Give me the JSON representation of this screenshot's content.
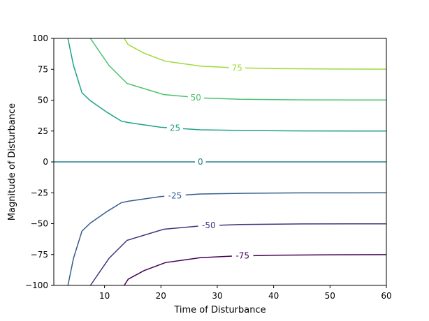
{
  "chart_data": {
    "type": "contour",
    "xlabel": "Time of Disturbance",
    "ylabel": "Magnitude of Disturbance",
    "xlim": [
      1,
      60
    ],
    "ylim": [
      -100,
      100
    ],
    "xticks": [
      10,
      20,
      30,
      40,
      50,
      60
    ],
    "yticks": [
      -100,
      -75,
      -50,
      -25,
      0,
      25,
      50,
      75,
      100
    ],
    "grid": false,
    "contours": [
      {
        "level": 75,
        "label": "75",
        "color": "#a0da39",
        "points": [
          [
            13.5,
            100
          ],
          [
            14.2,
            95
          ],
          [
            17,
            88
          ],
          [
            20.8,
            81.5
          ],
          [
            27,
            77.5
          ],
          [
            33,
            76.2
          ],
          [
            40,
            75.6
          ],
          [
            50,
            75.2
          ],
          [
            60,
            75.1
          ]
        ]
      },
      {
        "level": 50,
        "label": "50",
        "color": "#4ac16d",
        "points": [
          [
            7.5,
            100
          ],
          [
            10.8,
            78
          ],
          [
            14,
            63.5
          ],
          [
            20.5,
            54.5
          ],
          [
            27,
            51.8
          ],
          [
            34,
            50.7
          ],
          [
            45,
            50.2
          ],
          [
            60,
            50.1
          ]
        ]
      },
      {
        "level": 25,
        "label": "25",
        "color": "#1fa187",
        "points": [
          [
            3.5,
            100
          ],
          [
            4.5,
            78
          ],
          [
            6,
            56
          ],
          [
            7.5,
            49.5
          ],
          [
            10.5,
            40
          ],
          [
            13,
            33
          ],
          [
            14.3,
            31.8
          ],
          [
            20,
            28
          ],
          [
            27,
            26
          ],
          [
            35,
            25.4
          ],
          [
            45,
            25.1
          ],
          [
            60,
            25.0
          ]
        ]
      },
      {
        "level": 0,
        "label": "0",
        "color": "#277f8e",
        "points": [
          [
            1,
            0
          ],
          [
            60,
            0
          ]
        ]
      },
      {
        "level": -25,
        "label": "-25",
        "color": "#365c8d",
        "points": [
          [
            3.5,
            -100
          ],
          [
            4.5,
            -78
          ],
          [
            6,
            -56
          ],
          [
            7.5,
            -49.5
          ],
          [
            10.5,
            -40
          ],
          [
            13,
            -33
          ],
          [
            14.3,
            -31.8
          ],
          [
            20,
            -28
          ],
          [
            27,
            -26
          ],
          [
            35,
            -25.4
          ],
          [
            45,
            -25.1
          ],
          [
            60,
            -25.0
          ]
        ]
      },
      {
        "level": -50,
        "label": "-50",
        "color": "#46327e",
        "points": [
          [
            7.5,
            -100
          ],
          [
            10.8,
            -78
          ],
          [
            14,
            -63.5
          ],
          [
            20.5,
            -54.5
          ],
          [
            27,
            -51.8
          ],
          [
            34,
            -50.7
          ],
          [
            45,
            -50.2
          ],
          [
            60,
            -50.1
          ]
        ]
      },
      {
        "level": -75,
        "label": "-75",
        "color": "#440154",
        "points": [
          [
            13.5,
            -100
          ],
          [
            14.2,
            -95
          ],
          [
            17,
            -88
          ],
          [
            20.8,
            -81.5
          ],
          [
            27,
            -77.5
          ],
          [
            33,
            -76.2
          ],
          [
            40,
            -75.6
          ],
          [
            50,
            -75.2
          ],
          [
            60,
            -75.1
          ]
        ]
      }
    ],
    "labels": [
      {
        "text": "75",
        "x": 33.5,
        "y": 76.0,
        "color": "#a0da39"
      },
      {
        "text": "50",
        "x": 26.2,
        "y": 52.0,
        "color": "#4ac16d"
      },
      {
        "text": "25",
        "x": 22.5,
        "y": 27.3,
        "color": "#1fa187"
      },
      {
        "text": "0",
        "x": 27.0,
        "y": 0,
        "color": "#277f8e"
      },
      {
        "text": "-25",
        "x": 22.5,
        "y": -27.3,
        "color": "#365c8d"
      },
      {
        "text": "-50",
        "x": 28.5,
        "y": -51.5,
        "color": "#46327e"
      },
      {
        "text": "-75",
        "x": 34.5,
        "y": -76.0,
        "color": "#440154"
      }
    ]
  }
}
